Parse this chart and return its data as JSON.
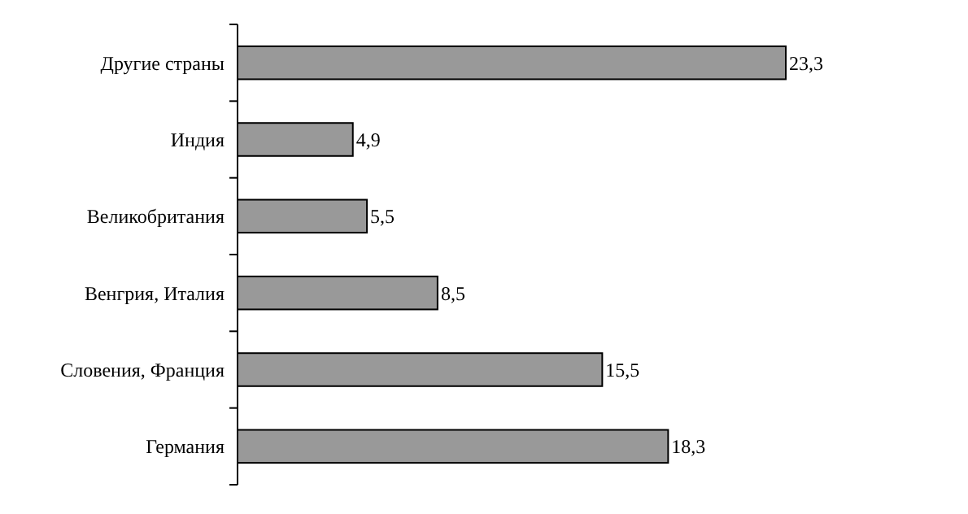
{
  "chart_data": {
    "type": "bar",
    "orientation": "horizontal",
    "categories": [
      "Другие страны",
      "Индия",
      "Великобритания",
      "Венгрия, Италия",
      "Словения, Франция",
      "Германия"
    ],
    "values": [
      23.3,
      4.9,
      5.5,
      8.5,
      15.5,
      18.3
    ],
    "value_labels": [
      "23,3",
      "4,9",
      "5,5",
      "8,5",
      "15,5",
      "18,3"
    ],
    "color": "#999999",
    "grid": false
  }
}
